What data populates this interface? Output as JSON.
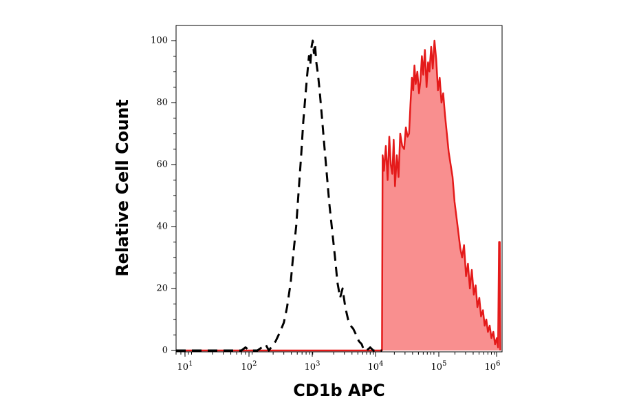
{
  "chart_data": {
    "type": "histogram",
    "xlabel": "CD1b APC",
    "ylabel": "Relative Cell Count",
    "x_scale": "log",
    "xlim": [
      5,
      1200000
    ],
    "ylim": [
      0,
      100
    ],
    "x_ticks": [
      {
        "base": "10",
        "exp": "1",
        "value": 10
      },
      {
        "base": "10",
        "exp": "2",
        "value": 100
      },
      {
        "base": "10",
        "exp": "3",
        "value": 1000
      },
      {
        "base": "10",
        "exp": "4",
        "value": 10000
      },
      {
        "base": "10",
        "exp": "5",
        "value": 100000
      },
      {
        "base": "10",
        "exp": "6",
        "value": 1000000
      }
    ],
    "y_ticks": [
      "0",
      "20",
      "40",
      "60",
      "80",
      "100"
    ],
    "grid": false,
    "series": [
      {
        "style": "dashed",
        "color": "#000000",
        "filled": false,
        "points": [
          [
            5,
            0
          ],
          [
            60,
            0
          ],
          [
            70,
            1
          ],
          [
            80,
            0
          ],
          [
            110,
            0
          ],
          [
            130,
            1
          ],
          [
            150,
            2
          ],
          [
            170,
            0
          ],
          [
            220,
            3
          ],
          [
            260,
            6
          ],
          [
            300,
            9
          ],
          [
            340,
            14
          ],
          [
            390,
            22
          ],
          [
            430,
            31
          ],
          [
            480,
            40
          ],
          [
            530,
            52
          ],
          [
            580,
            63
          ],
          [
            630,
            74
          ],
          [
            680,
            82
          ],
          [
            730,
            89
          ],
          [
            780,
            95
          ],
          [
            820,
            92
          ],
          [
            860,
            98
          ],
          [
            900,
            100
          ],
          [
            940,
            96
          ],
          [
            980,
            99
          ],
          [
            1030,
            93
          ],
          [
            1100,
            89
          ],
          [
            1180,
            83
          ],
          [
            1280,
            75
          ],
          [
            1400,
            66
          ],
          [
            1550,
            56
          ],
          [
            1700,
            47
          ],
          [
            1900,
            38
          ],
          [
            2100,
            30
          ],
          [
            2300,
            22
          ],
          [
            2550,
            17
          ],
          [
            2800,
            20
          ],
          [
            3100,
            14
          ],
          [
            3450,
            10
          ],
          [
            3800,
            8
          ],
          [
            4200,
            7
          ],
          [
            4700,
            5
          ],
          [
            5200,
            3
          ],
          [
            5800,
            2
          ],
          [
            6300,
            0
          ],
          [
            7000,
            0
          ],
          [
            8000,
            1
          ],
          [
            9000,
            0
          ],
          [
            10500,
            0
          ],
          [
            12500,
            0
          ]
        ]
      },
      {
        "style": "solid",
        "color": "#e41a1a",
        "fill": "#f98f8f",
        "filled": true,
        "points": [
          [
            5,
            0
          ],
          [
            12000,
            0
          ],
          [
            12500,
            0
          ],
          [
            12800,
            63
          ],
          [
            13500,
            58
          ],
          [
            14500,
            66
          ],
          [
            15500,
            55
          ],
          [
            16500,
            69
          ],
          [
            17500,
            60
          ],
          [
            18500,
            57
          ],
          [
            19500,
            68
          ],
          [
            20500,
            53
          ],
          [
            22000,
            63
          ],
          [
            23500,
            56
          ],
          [
            25000,
            70
          ],
          [
            27000,
            66
          ],
          [
            29000,
            65
          ],
          [
            31000,
            72
          ],
          [
            33000,
            69
          ],
          [
            35000,
            70
          ],
          [
            37000,
            80
          ],
          [
            39000,
            88
          ],
          [
            41000,
            84
          ],
          [
            43000,
            92
          ],
          [
            45000,
            86
          ],
          [
            48000,
            90
          ],
          [
            51000,
            83
          ],
          [
            54000,
            87
          ],
          [
            57000,
            95
          ],
          [
            60000,
            89
          ],
          [
            64000,
            97
          ],
          [
            68000,
            85
          ],
          [
            72000,
            93
          ],
          [
            76000,
            90
          ],
          [
            81000,
            98
          ],
          [
            86000,
            91
          ],
          [
            92000,
            100
          ],
          [
            98000,
            94
          ],
          [
            105000,
            84
          ],
          [
            112000,
            88
          ],
          [
            120000,
            80
          ],
          [
            128000,
            83
          ],
          [
            137000,
            76
          ],
          [
            147000,
            70
          ],
          [
            158000,
            64
          ],
          [
            170000,
            60
          ],
          [
            183000,
            56
          ],
          [
            197000,
            48
          ],
          [
            212000,
            43
          ],
          [
            228000,
            38
          ],
          [
            245000,
            33
          ],
          [
            263000,
            30
          ],
          [
            283000,
            34
          ],
          [
            305000,
            24
          ],
          [
            328000,
            28
          ],
          [
            353000,
            20
          ],
          [
            380000,
            26
          ],
          [
            410000,
            18
          ],
          [
            440000,
            21
          ],
          [
            470000,
            14
          ],
          [
            505000,
            17
          ],
          [
            540000,
            11
          ],
          [
            580000,
            13
          ],
          [
            620000,
            8
          ],
          [
            660000,
            10
          ],
          [
            700000,
            6
          ],
          [
            750000,
            8
          ],
          [
            800000,
            4
          ],
          [
            860000,
            6
          ],
          [
            920000,
            2
          ],
          [
            980000,
            4
          ],
          [
            1030000,
            1
          ],
          [
            1070000,
            35
          ],
          [
            1100000,
            35
          ],
          [
            1120000,
            0
          ]
        ]
      }
    ]
  }
}
